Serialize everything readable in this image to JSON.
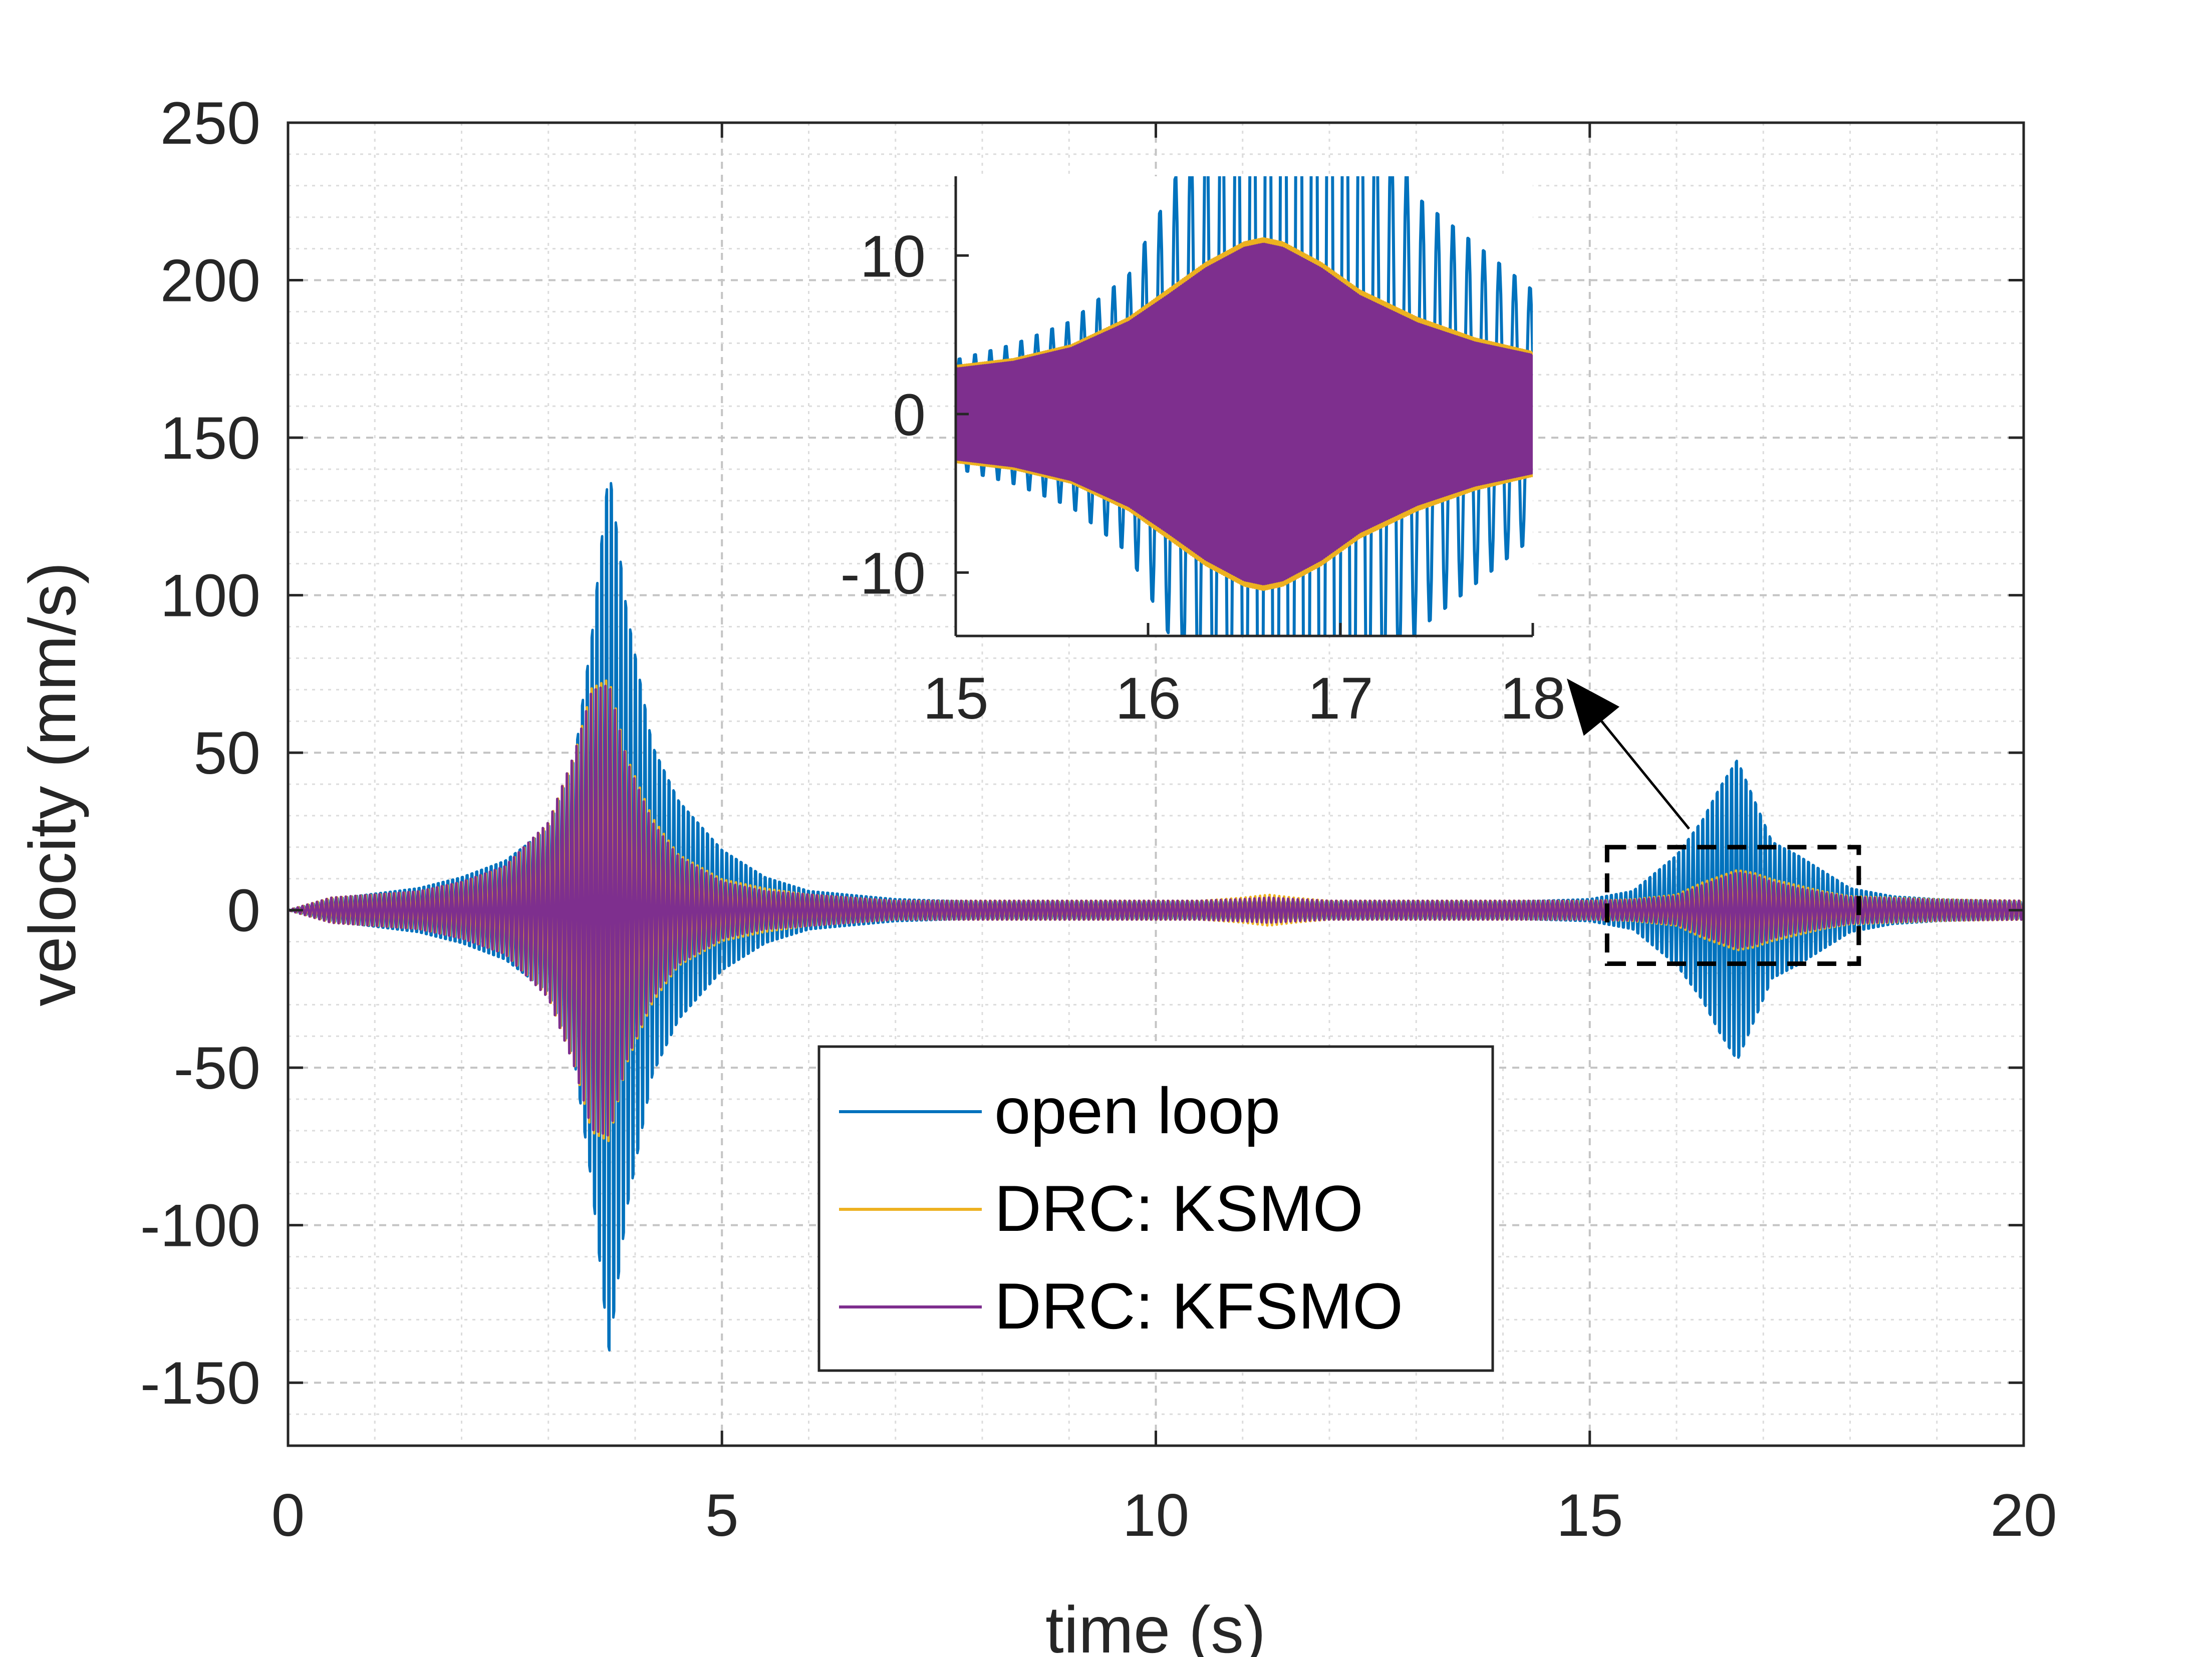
{
  "chart_data": [
    {
      "type": "line",
      "xlabel": "time (s)",
      "ylabel": "velocity (mm/s)",
      "xlim": [
        0,
        20
      ],
      "ylim": [
        -170,
        250
      ],
      "xticks": [
        0,
        5,
        10,
        15,
        20
      ],
      "yticks": [
        -150,
        -100,
        -50,
        0,
        50,
        100,
        150,
        200,
        250
      ],
      "xtick_labels": [
        "0",
        "5",
        "10",
        "15",
        "20"
      ],
      "ytick_labels": [
        "-150",
        "-100",
        "-50",
        "0",
        "50",
        "100",
        "150",
        "200",
        "250"
      ],
      "grid": true,
      "minor_grid": true,
      "legend_position": "bottom-center",
      "series": [
        {
          "name": "open loop",
          "color": "#0072BD",
          "envelope": {
            "t": [
              0,
              0.5,
              1,
              1.5,
              2,
              2.5,
              3,
              3.3,
              3.5,
              3.7,
              3.9,
              4.2,
              4.5,
              5,
              5.5,
              6,
              7,
              8,
              9,
              10,
              11,
              11.5,
              12,
              13,
              14,
              15,
              15.5,
              16,
              16.3,
              16.5,
              16.7,
              16.9,
              17.1,
              17.4,
              17.7,
              18,
              18.5,
              19,
              20
            ],
            "amp": [
              0,
              4,
              6,
              8,
              12,
              18,
              30,
              55,
              100,
              162,
              110,
              60,
              40,
              22,
              12,
              7,
              4,
              3,
              3,
              3,
              3,
              3,
              3,
              3,
              3,
              4,
              7,
              20,
              33,
              45,
              55,
              40,
              25,
              20,
              14,
              8,
              5,
              4,
              3
            ]
          }
        },
        {
          "name": "DRC: KSMO",
          "color": "#EDB120",
          "envelope": {
            "t": [
              0,
              0.5,
              1,
              1.5,
              2,
              2.5,
              3,
              3.3,
              3.5,
              3.7,
              3.9,
              4.2,
              4.5,
              5,
              5.5,
              6,
              7,
              8,
              9,
              10,
              10.5,
              11,
              11.3,
              11.6,
              12,
              13,
              14,
              15,
              15.5,
              16,
              16.3,
              16.5,
              16.7,
              16.9,
              17.1,
              17.4,
              17.7,
              18,
              18.5,
              19,
              20
            ],
            "amp": [
              0,
              4,
              5,
              6,
              9,
              14,
              28,
              50,
              72,
              75,
              50,
              30,
              18,
              10,
              7,
              5,
              3,
              3,
              3,
              3,
              3,
              4,
              5,
              4,
              3,
              3,
              3,
              3,
              3.5,
              5,
              9,
              11,
              13,
              12,
              10,
              8,
              6,
              4.5,
              4,
              3.5,
              3
            ]
          }
        },
        {
          "name": "DRC: KFSMO",
          "color": "#7E2F8E",
          "envelope": {
            "t": [
              0,
              0.5,
              1,
              1.5,
              2,
              2.5,
              3,
              3.3,
              3.5,
              3.7,
              3.9,
              4.2,
              4.5,
              5,
              5.5,
              6,
              7,
              8,
              9,
              10,
              10.5,
              11,
              11.3,
              11.6,
              12,
              13,
              14,
              15,
              15.5,
              16,
              16.3,
              16.5,
              16.7,
              16.9,
              17.1,
              17.4,
              17.7,
              18,
              18.5,
              19,
              20
            ],
            "amp": [
              0,
              4,
              5,
              6,
              9,
              14,
              28,
              50,
              70,
              72,
              48,
              28,
              17,
              9,
              6,
              5,
              3,
              3,
              3,
              3,
              3,
              3.5,
              4,
              3.5,
              3,
              3,
              3,
              3,
              3.3,
              4.5,
              8,
              10,
              12,
              11,
              9,
              7,
              5.5,
              4.2,
              3.8,
              3.3,
              3
            ]
          }
        }
      ],
      "annotation": {
        "type": "zoom-box",
        "x_range": [
          15.2,
          18.1
        ],
        "y_range": [
          -17,
          20
        ]
      }
    },
    {
      "type": "line",
      "role": "inset",
      "xlim": [
        15,
        18
      ],
      "ylim": [
        -14,
        15
      ],
      "xticks": [
        15,
        16,
        17,
        18
      ],
      "yticks": [
        -10,
        0,
        10
      ],
      "xtick_labels": [
        "15",
        "16",
        "17",
        "18"
      ],
      "ytick_labels": [
        "-10",
        "0",
        "10"
      ],
      "grid": false,
      "series": [
        {
          "name": "open loop",
          "color": "#0072BD",
          "envelope": {
            "t": [
              15,
              15.3,
              15.6,
              15.9,
              16.1,
              16.3,
              16.5,
              16.6,
              16.8,
              17.0,
              17.2,
              17.4,
              17.6,
              17.8,
              18
            ],
            "amp": [
              3.5,
              4.5,
              6,
              9,
              14,
              20,
              30,
              40,
              50,
              40,
              20,
              14,
              12,
              10,
              8
            ]
          }
        },
        {
          "name": "DRC: KSMO",
          "color": "#EDB120",
          "envelope": {
            "t": [
              15,
              15.3,
              15.6,
              15.9,
              16.1,
              16.3,
              16.5,
              16.6,
              16.7,
              16.9,
              17.1,
              17.4,
              17.7,
              18
            ],
            "amp": [
              3.5,
              4,
              5,
              7,
              9,
              11,
              12.5,
              12.8,
              12.5,
              11,
              9,
              7,
              5.5,
              4.5
            ]
          }
        },
        {
          "name": "DRC: KFSMO",
          "color": "#7E2F8E",
          "envelope": {
            "t": [
              15,
              15.3,
              15.6,
              15.9,
              16.1,
              16.3,
              16.5,
              16.6,
              16.7,
              16.9,
              17.1,
              17.4,
              17.7,
              18
            ],
            "amp": [
              3.3,
              3.8,
              4.8,
              6.7,
              8.6,
              10.6,
              12.1,
              12.4,
              12.1,
              10.6,
              8.6,
              6.6,
              5.2,
              4.3
            ]
          }
        }
      ]
    }
  ]
}
